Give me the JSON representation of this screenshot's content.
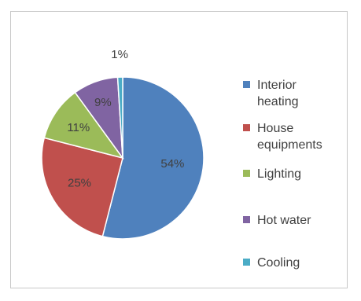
{
  "chart_data": {
    "type": "pie",
    "title": "",
    "start_angle_deg": 0,
    "direction": "clockwise",
    "legend_position": "right",
    "slices": [
      {
        "label": "Interior heating",
        "legend_lines": [
          "Interior",
          "heating"
        ],
        "value": 54,
        "display": "54%",
        "color": "#4F81BD"
      },
      {
        "label": "House equipments",
        "legend_lines": [
          "House",
          "equipments"
        ],
        "value": 25,
        "display": "25%",
        "color": "#C0504D"
      },
      {
        "label": "Lighting",
        "legend_lines": [
          "Lighting"
        ],
        "value": 11,
        "display": "11%",
        "color": "#9BBB59"
      },
      {
        "label": "Hot water",
        "legend_lines": [
          "Hot water"
        ],
        "value": 9,
        "display": "9%",
        "color": "#8064A2"
      },
      {
        "label": "Cooling",
        "legend_lines": [
          "Cooling"
        ],
        "value": 1,
        "display": "1%",
        "color": "#4BACC6"
      }
    ]
  }
}
